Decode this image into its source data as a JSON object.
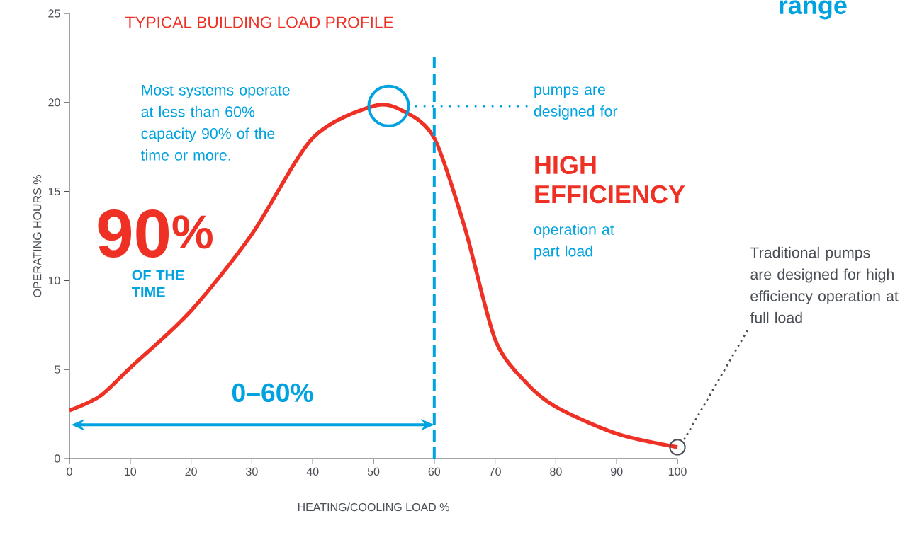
{
  "chart_data": {
    "type": "line",
    "title": "TYPICAL BUILDING LOAD PROFILE",
    "xlabel": "HEATING/COOLING LOAD %",
    "ylabel": "OPERATING HOURS %",
    "x": [
      0,
      5,
      10,
      20,
      30,
      40,
      50,
      55,
      60,
      65,
      70,
      75,
      80,
      90,
      100
    ],
    "series": [
      {
        "color": "#ee3124",
        "values": [
          2.7,
          3.5,
          5.1,
          8.3,
          12.6,
          18.0,
          19.8,
          19.5,
          18.0,
          13.0,
          6.7,
          4.3,
          2.9,
          1.4,
          0.64
        ]
      }
    ],
    "xlim": [
      0,
      100
    ],
    "ylim": [
      0,
      25
    ],
    "xticks": [
      0,
      10,
      20,
      30,
      40,
      50,
      60,
      70,
      80,
      90,
      100
    ],
    "yticks": [
      0,
      5,
      10,
      15,
      20,
      25
    ],
    "ref_lines": [
      {
        "axis": "x",
        "value": 60,
        "color": "#00a3e0",
        "line_style": "dashed"
      }
    ],
    "annotations": [
      "Most systems operate at less than 60% capacity 90% of the time or more.",
      "90$^{%}$",
      "OF THE TIME",
      "0–60%",
      "pumps are designed for",
      "HIGH EFFICIENCY",
      "operation at part load",
      "Traditional pumps are designed for high efficiency operation at full load",
      "range"
    ]
  }
}
